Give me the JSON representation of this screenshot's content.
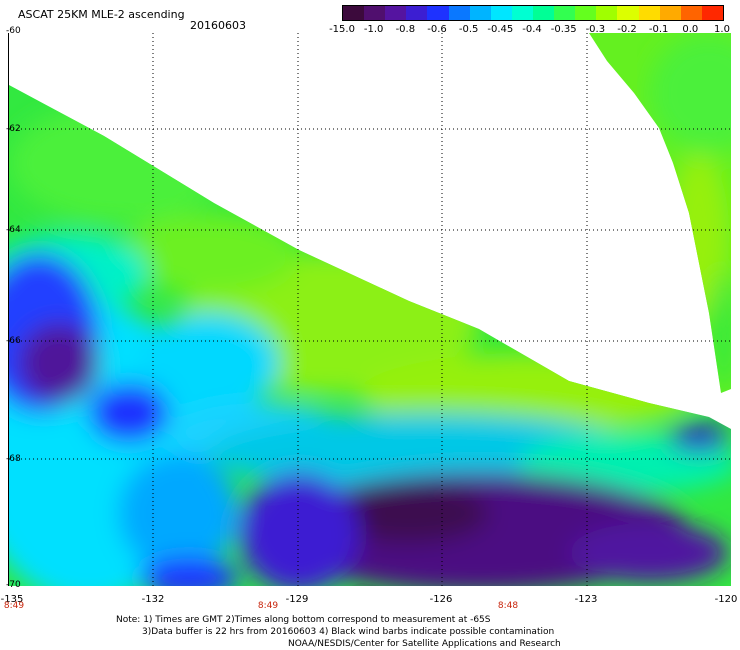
{
  "header": {
    "title": "ASCAT 25KM MLE-2 ascending",
    "date": "20160603"
  },
  "colorbar": {
    "labels": [
      "-15.0",
      "-1.0",
      "-0.8",
      "-0.6",
      "-0.5",
      "-0.45",
      "-0.4",
      "-0.35",
      "-0.3",
      "-0.2",
      "-0.1",
      "0.0",
      "1.0"
    ],
    "colors": [
      "#3c0a3c",
      "#500f6e",
      "#5514a0",
      "#3c1ed2",
      "#1e32ff",
      "#0a78ff",
      "#00b4ff",
      "#00e6ff",
      "#00ffd2",
      "#00ff96",
      "#32ff50",
      "#64ff1e",
      "#a0ff00",
      "#dcff00",
      "#ffdc00",
      "#ffaa00",
      "#ff6400",
      "#ff2800"
    ]
  },
  "axes": {
    "lat_labels": [
      "-60",
      "-62",
      "-64",
      "-66",
      "-68",
      "-70"
    ],
    "lon_labels": [
      "-135",
      "-132",
      "-129",
      "-126",
      "-123",
      "-120"
    ]
  },
  "times": [
    "8:49",
    "8:49",
    "8:48"
  ],
  "notes": {
    "line1": "Note: 1) Times are GMT 2)Times along bottom correspond to measurement at -65S",
    "line2": "3)Data buffer is 22 hrs from 20160603 4) Black wind barbs indicate possible contamination",
    "line3": "NOAA/NESDIS/Center for Satellite Applications and Research"
  }
}
